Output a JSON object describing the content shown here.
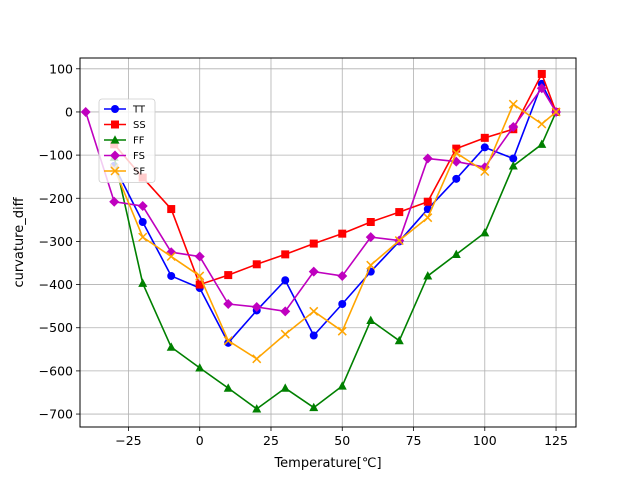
{
  "chart_data": {
    "type": "line",
    "title": "",
    "xlabel": "Temperature[℃]",
    "ylabel": "curvature_diff",
    "xlim": [
      -42,
      132
    ],
    "ylim": [
      -730,
      125
    ],
    "xticks": [
      -25,
      0,
      25,
      50,
      75,
      100,
      125
    ],
    "yticks": [
      -700,
      -600,
      -500,
      -400,
      -300,
      -200,
      -100,
      0,
      100
    ],
    "grid": true,
    "legend_position": "upper-left",
    "series": [
      {
        "name": "TT",
        "color": "#0000ff",
        "marker": "circle",
        "x": [
          -30,
          -20,
          -10,
          0,
          10,
          20,
          30,
          40,
          50,
          60,
          70,
          80,
          90,
          100,
          110,
          120,
          125
        ],
        "y": [
          -125,
          -255,
          -380,
          -408,
          -535,
          -460,
          -390,
          -518,
          -445,
          -370,
          -300,
          -225,
          -155,
          -82,
          -108,
          65,
          0
        ]
      },
      {
        "name": "SS",
        "color": "#ff0000",
        "marker": "square",
        "x": [
          -30,
          -20,
          -10,
          0,
          10,
          20,
          30,
          40,
          50,
          60,
          70,
          80,
          90,
          100,
          110,
          120,
          125
        ],
        "y": [
          -75,
          -152,
          -225,
          -400,
          -378,
          -353,
          -330,
          -305,
          -282,
          -255,
          -232,
          -208,
          -85,
          -60,
          -40,
          88,
          0
        ]
      },
      {
        "name": "FF",
        "color": "#008000",
        "marker": "triangle",
        "x": [
          -30,
          -20,
          -10,
          0,
          10,
          20,
          30,
          40,
          50,
          60,
          70,
          80,
          90,
          100,
          110,
          120,
          125
        ],
        "y": [
          -105,
          -397,
          -545,
          -593,
          -640,
          -688,
          -640,
          -685,
          -635,
          -483,
          -530,
          -380,
          -330,
          -280,
          -125,
          -75,
          0
        ]
      },
      {
        "name": "FS",
        "color": "#bf00bf",
        "marker": "diamond",
        "x": [
          -40,
          -30,
          -20,
          -10,
          0,
          10,
          20,
          30,
          40,
          50,
          60,
          70,
          80,
          90,
          100,
          110,
          120,
          125
        ],
        "y": [
          0,
          -208,
          -218,
          -325,
          -335,
          -445,
          -452,
          -462,
          -370,
          -380,
          -290,
          -298,
          -108,
          -115,
          -128,
          -35,
          55,
          0
        ]
      },
      {
        "name": "SF",
        "color": "#ffa500",
        "marker": "x",
        "x": [
          -30,
          -20,
          -10,
          0,
          10,
          20,
          30,
          40,
          50,
          60,
          70,
          80,
          90,
          100,
          110,
          120,
          125
        ],
        "y": [
          -130,
          -290,
          -335,
          -380,
          -530,
          -572,
          -515,
          -462,
          -508,
          -355,
          -298,
          -245,
          -95,
          -138,
          18,
          -28,
          0
        ]
      }
    ]
  }
}
